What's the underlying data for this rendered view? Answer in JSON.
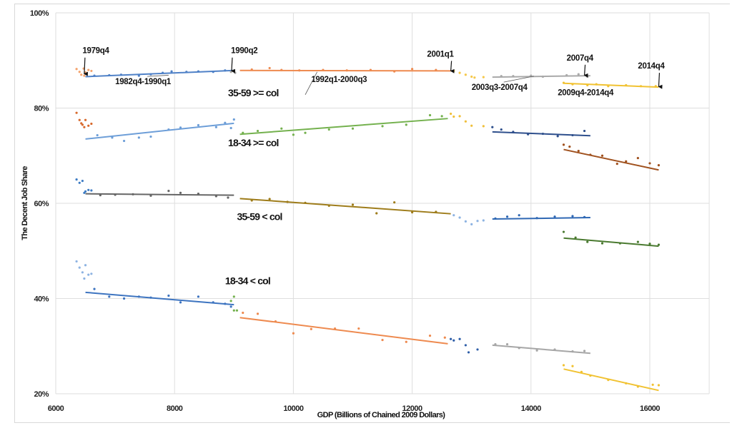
{
  "chart_data": {
    "type": "scatter",
    "xlabel": "GDP (Billions of Chained 2009 Dollars)",
    "ylabel": "The Decent Job Share",
    "xlim": [
      6000,
      17000
    ],
    "ylim": [
      20,
      100
    ],
    "xticks": [
      "6000",
      "8000",
      "10000",
      "12000",
      "14000",
      "16000"
    ],
    "xtick_values": [
      6000,
      8000,
      10000,
      12000,
      14000,
      16000
    ],
    "yticks": [
      "20%",
      "40%",
      "60%",
      "80%",
      "100%"
    ],
    "ytick_values": [
      20,
      40,
      60,
      80,
      100
    ],
    "grid": true,
    "group_labels": [
      {
        "text": "35-59 >= col",
        "x": 8900,
        "y": 82.5
      },
      {
        "text": "18-34 >= col",
        "x": 8900,
        "y": 72
      },
      {
        "text": "35-59 < col",
        "x": 9050,
        "y": 56.5
      },
      {
        "text": "18-34 < col",
        "x": 8850,
        "y": 43
      }
    ],
    "annotations": [
      {
        "text": "1979q4",
        "x": 6450,
        "y": 91.5,
        "arrow_to": [
          6480,
          87.2
        ]
      },
      {
        "text": "1990q2",
        "x": 8950,
        "y": 91.5,
        "arrow_to": [
          8960,
          87.8
        ]
      },
      {
        "text": "1982q4-1990q1",
        "x": 7000,
        "y": 85,
        "leader_to": [
          7900,
          86.9
        ]
      },
      {
        "text": "1992q1-2000q3",
        "x": 10300,
        "y": 85.5,
        "leader_to": [
          10400,
          87.6
        ],
        "leader_from": [
          10200,
          82.8
        ]
      },
      {
        "text": "2001q1",
        "x": 12250,
        "y": 90.8,
        "arrow_to": [
          12650,
          87.8
        ]
      },
      {
        "text": "2003q3-2007q4",
        "x": 13000,
        "y": 83.8,
        "leader_to": [
          14050,
          86.7
        ]
      },
      {
        "text": "2007q4",
        "x": 14600,
        "y": 90,
        "arrow_to": [
          14900,
          86.9
        ]
      },
      {
        "text": "2014q4",
        "x": 15800,
        "y": 88.3,
        "arrow_to": [
          16150,
          84.5
        ]
      },
      {
        "text": "2009q4-2014q4",
        "x": 14450,
        "y": 82.7
      }
    ],
    "series": [
      {
        "color": "#f4a36d",
        "points": [
          [
            6350,
            88.2
          ],
          [
            6400,
            87.6
          ],
          [
            6430,
            87.0
          ],
          [
            6470,
            88.3
          ],
          [
            6500,
            87.5
          ],
          [
            6550,
            88.0
          ],
          [
            6600,
            87.8
          ],
          [
            6480,
            86.8
          ]
        ]
      },
      {
        "color": "#4f81c7",
        "trend": [
          [
            6500,
            86.6
          ],
          [
            9000,
            87.9
          ]
        ],
        "points": [
          [
            6650,
            86.8
          ],
          [
            6900,
            86.9
          ],
          [
            7100,
            87.0
          ],
          [
            7400,
            86.8
          ],
          [
            7600,
            87.1
          ],
          [
            7800,
            87.4
          ],
          [
            7950,
            87.7
          ],
          [
            8200,
            87.6
          ],
          [
            8400,
            87.7
          ],
          [
            8650,
            87.6
          ],
          [
            8850,
            87.9
          ]
        ]
      },
      {
        "color": "#a6a6a6",
        "points": [
          [
            8950,
            87.6
          ],
          [
            9000,
            87.9
          ],
          [
            9020,
            87.4
          ]
        ]
      },
      {
        "color": "#ee8a4f",
        "trend": [
          [
            9100,
            87.9
          ],
          [
            12650,
            87.8
          ]
        ],
        "points": [
          [
            9300,
            88.1
          ],
          [
            9600,
            88.4
          ],
          [
            9800,
            88.0
          ],
          [
            10100,
            87.9
          ],
          [
            10500,
            88.0
          ],
          [
            10900,
            87.9
          ],
          [
            11300,
            88.0
          ],
          [
            11700,
            87.7
          ],
          [
            12000,
            88.2
          ],
          [
            12400,
            88.0
          ]
        ]
      },
      {
        "color": "#f5c84a",
        "points": [
          [
            12700,
            87.8
          ],
          [
            12800,
            87.4
          ],
          [
            12900,
            87.0
          ],
          [
            13000,
            86.6
          ],
          [
            13050,
            86.4
          ],
          [
            13200,
            86.5
          ]
        ]
      },
      {
        "color": "#a9a9a9",
        "trend": [
          [
            13350,
            86.5
          ],
          [
            15000,
            86.8
          ]
        ],
        "points": [
          [
            13500,
            86.7
          ],
          [
            13700,
            86.7
          ],
          [
            14000,
            86.8
          ],
          [
            14200,
            86.6
          ],
          [
            14600,
            86.9
          ],
          [
            14800,
            87.1
          ],
          [
            14950,
            86.6
          ]
        ]
      },
      {
        "color": "#f1c232",
        "trend": [
          [
            14550,
            85.2
          ],
          [
            16150,
            84.4
          ]
        ],
        "points": [
          [
            14550,
            85.3
          ],
          [
            14700,
            85.0
          ],
          [
            14950,
            84.8
          ],
          [
            15100,
            85.0
          ],
          [
            15300,
            84.6
          ],
          [
            15600,
            84.8
          ],
          [
            15850,
            84.6
          ],
          [
            16100,
            84.6
          ]
        ]
      },
      {
        "color": "#d8692c",
        "points": [
          [
            6350,
            79
          ],
          [
            6400,
            77.5
          ],
          [
            6450,
            76.5
          ],
          [
            6480,
            76.0
          ],
          [
            6500,
            77.5
          ],
          [
            6550,
            76.3
          ],
          [
            6600,
            76.7
          ],
          [
            6430,
            76.8
          ]
        ]
      },
      {
        "color": "#6d9ed8",
        "trend": [
          [
            6500,
            73.5
          ],
          [
            9000,
            76.8
          ]
        ],
        "points": [
          [
            6700,
            74.3
          ],
          [
            6950,
            73.8
          ],
          [
            7150,
            73.1
          ],
          [
            7400,
            73.8
          ],
          [
            7600,
            74.0
          ],
          [
            7900,
            75.5
          ],
          [
            8100,
            75.9
          ],
          [
            8400,
            76.4
          ],
          [
            8700,
            76.0
          ],
          [
            8850,
            76.9
          ],
          [
            8950,
            75.8
          ],
          [
            9000,
            77.6
          ]
        ]
      },
      {
        "color": "#74b14e",
        "trend": [
          [
            9100,
            74.5
          ],
          [
            12600,
            77.8
          ]
        ],
        "points": [
          [
            9150,
            74.8
          ],
          [
            9400,
            75.2
          ],
          [
            9800,
            75.7
          ],
          [
            10000,
            74.4
          ],
          [
            10200,
            74.8
          ],
          [
            10600,
            75.5
          ],
          [
            11000,
            75.7
          ],
          [
            11500,
            76.2
          ],
          [
            11900,
            76.5
          ],
          [
            12300,
            78.5
          ],
          [
            12500,
            78.3
          ]
        ]
      },
      {
        "color": "#f0bf3a",
        "points": [
          [
            12650,
            78.8
          ],
          [
            12700,
            78.2
          ],
          [
            12800,
            78.3
          ],
          [
            12900,
            77.2
          ],
          [
            13000,
            76.3
          ],
          [
            13200,
            76.2
          ]
        ]
      },
      {
        "color": "#2e4f8c",
        "trend": [
          [
            13350,
            75.0
          ],
          [
            15000,
            74.2
          ]
        ],
        "points": [
          [
            13350,
            76.0
          ],
          [
            13500,
            75.5
          ],
          [
            13700,
            75.0
          ],
          [
            13950,
            74.5
          ],
          [
            14200,
            74.6
          ],
          [
            14450,
            74.1
          ],
          [
            14700,
            74.3
          ],
          [
            14900,
            75.2
          ]
        ]
      },
      {
        "color": "#a0511e",
        "trend": [
          [
            14550,
            71.3
          ],
          [
            16150,
            67.0
          ]
        ],
        "points": [
          [
            14550,
            72.3
          ],
          [
            14650,
            71.9
          ],
          [
            14800,
            71.0
          ],
          [
            15000,
            70.2
          ],
          [
            15200,
            70.0
          ],
          [
            15450,
            68.3
          ],
          [
            15600,
            68.8
          ],
          [
            15800,
            69.5
          ],
          [
            16000,
            68.4
          ],
          [
            16150,
            68.0
          ]
        ]
      },
      {
        "color": "#3d7cc4",
        "points": [
          [
            6350,
            65.0
          ],
          [
            6400,
            64.3
          ],
          [
            6450,
            64.7
          ],
          [
            6500,
            62.5
          ],
          [
            6550,
            62.8
          ],
          [
            6600,
            62.7
          ],
          [
            6480,
            62.2
          ]
        ]
      },
      {
        "color": "#666666",
        "trend": [
          [
            6500,
            62.0
          ],
          [
            9000,
            61.7
          ]
        ],
        "points": [
          [
            6750,
            61.7
          ],
          [
            7000,
            61.8
          ],
          [
            7300,
            61.9
          ],
          [
            7600,
            61.6
          ],
          [
            7900,
            62.6
          ],
          [
            8100,
            62.2
          ],
          [
            8400,
            62.0
          ],
          [
            8700,
            61.5
          ],
          [
            8900,
            61.2
          ]
        ]
      },
      {
        "color": "#9e7c1a",
        "trend": [
          [
            9100,
            61.0
          ],
          [
            12650,
            57.8
          ]
        ],
        "points": [
          [
            9300,
            60.6
          ],
          [
            9600,
            60.9
          ],
          [
            9900,
            60.3
          ],
          [
            10200,
            60.1
          ],
          [
            10600,
            59.5
          ],
          [
            11000,
            59.7
          ],
          [
            11400,
            57.9
          ],
          [
            11700,
            60.2
          ],
          [
            12000,
            58.1
          ],
          [
            12400,
            58.2
          ]
        ]
      },
      {
        "color": "#8db3e2",
        "points": [
          [
            12700,
            57.5
          ],
          [
            12800,
            57.0
          ],
          [
            12900,
            56.2
          ],
          [
            13000,
            55.6
          ],
          [
            13100,
            56.3
          ],
          [
            13200,
            56.4
          ]
        ]
      },
      {
        "color": "#2f68b4",
        "trend": [
          [
            13350,
            56.7
          ],
          [
            15000,
            57.0
          ]
        ],
        "points": [
          [
            13400,
            56.8
          ],
          [
            13600,
            57.2
          ],
          [
            13800,
            57.5
          ],
          [
            14100,
            56.9
          ],
          [
            14400,
            57.2
          ],
          [
            14700,
            57.3
          ],
          [
            14900,
            57.1
          ]
        ]
      },
      {
        "color": "#4a7a30",
        "trend": [
          [
            14550,
            52.7
          ],
          [
            16150,
            51.0
          ]
        ],
        "points": [
          [
            14550,
            54.0
          ],
          [
            14750,
            52.8
          ],
          [
            14950,
            51.9
          ],
          [
            15200,
            51.6
          ],
          [
            15500,
            51.6
          ],
          [
            15800,
            51.9
          ],
          [
            16000,
            51.5
          ],
          [
            16150,
            51.3
          ]
        ]
      },
      {
        "color": "#8db3e2",
        "points": [
          [
            6350,
            47.8
          ],
          [
            6400,
            46.5
          ],
          [
            6450,
            45.5
          ],
          [
            6480,
            44.2
          ],
          [
            6500,
            47.0
          ],
          [
            6550,
            45.0
          ],
          [
            6600,
            45.2
          ]
        ]
      },
      {
        "color": "#3d74c0",
        "trend": [
          [
            6500,
            41.3
          ],
          [
            9000,
            38.7
          ]
        ],
        "points": [
          [
            6650,
            42.0
          ],
          [
            6900,
            40.4
          ],
          [
            7150,
            40.0
          ],
          [
            7400,
            40.4
          ],
          [
            7600,
            40.2
          ],
          [
            7900,
            40.6
          ],
          [
            8100,
            39.2
          ],
          [
            8400,
            40.4
          ],
          [
            8650,
            39.2
          ],
          [
            8850,
            38.9
          ],
          [
            8950,
            38.3
          ]
        ]
      },
      {
        "color": "#74b14e",
        "points": [
          [
            8950,
            39.5
          ],
          [
            9000,
            40.4
          ],
          [
            9000,
            37.5
          ],
          [
            9050,
            37.5
          ]
        ]
      },
      {
        "color": "#ee8a4f",
        "trend": [
          [
            9100,
            36.0
          ],
          [
            12600,
            30.5
          ]
        ],
        "points": [
          [
            9150,
            37.0
          ],
          [
            9400,
            36.8
          ],
          [
            9700,
            35.2
          ],
          [
            10000,
            32.7
          ],
          [
            10300,
            33.6
          ],
          [
            10700,
            33.7
          ],
          [
            11100,
            33.7
          ],
          [
            11500,
            31.3
          ],
          [
            11900,
            30.9
          ],
          [
            12300,
            32.2
          ],
          [
            12550,
            31.8
          ]
        ]
      },
      {
        "color": "#2e5ea8",
        "points": [
          [
            12650,
            31.5
          ],
          [
            12700,
            31.2
          ],
          [
            12800,
            31.5
          ],
          [
            12900,
            30.2
          ],
          [
            12950,
            28.7
          ],
          [
            13100,
            29.3
          ]
        ]
      },
      {
        "color": "#a6a6a6",
        "trend": [
          [
            13350,
            30.2
          ],
          [
            15000,
            28.5
          ]
        ],
        "points": [
          [
            13400,
            30.4
          ],
          [
            13600,
            30.4
          ],
          [
            13800,
            29.6
          ],
          [
            14100,
            29.1
          ],
          [
            14400,
            29.3
          ],
          [
            14700,
            28.9
          ],
          [
            14900,
            29.0
          ]
        ]
      },
      {
        "color": "#f1c232",
        "trend": [
          [
            14550,
            25.2
          ],
          [
            16150,
            20.7
          ]
        ],
        "points": [
          [
            14550,
            26.0
          ],
          [
            14700,
            25.8
          ],
          [
            14850,
            24.6
          ],
          [
            15000,
            23.8
          ],
          [
            15300,
            22.9
          ],
          [
            15600,
            22.2
          ],
          [
            15800,
            21.5
          ],
          [
            16050,
            21.9
          ],
          [
            16150,
            21.8
          ]
        ]
      }
    ]
  }
}
